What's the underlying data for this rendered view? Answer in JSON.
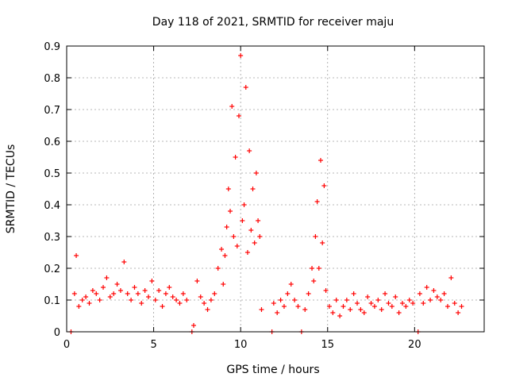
{
  "chart_data": {
    "type": "scatter",
    "title": "Day 118 of 2021, SRMTID for receiver maju",
    "xlabel": "GPS time / hours",
    "ylabel": "SRMTID / TECUs",
    "xlim": [
      0,
      24
    ],
    "ylim": [
      0,
      0.9
    ],
    "xticks": [
      0,
      5,
      10,
      15,
      20
    ],
    "xtick_labels": [
      "0",
      "5",
      "10",
      "15",
      "20"
    ],
    "yticks": [
      0,
      0.1,
      0.2,
      0.3,
      0.4,
      0.5,
      0.6,
      0.7,
      0.8,
      0.9
    ],
    "ytick_labels": [
      "0",
      "0.1",
      "0.2",
      "0.3",
      "0.4",
      "0.5",
      "0.6",
      "0.7",
      "0.8",
      "0.9"
    ],
    "grid": true,
    "marker": "+",
    "series": [
      {
        "name": "SRMTID",
        "color": "#ff0000",
        "x": [
          0.25,
          0.45,
          0.55,
          0.7,
          0.9,
          1.1,
          1.3,
          1.5,
          1.7,
          1.9,
          2.1,
          2.3,
          2.5,
          2.7,
          2.9,
          3.1,
          3.3,
          3.5,
          3.7,
          3.9,
          4.1,
          4.3,
          4.5,
          4.7,
          4.9,
          5.1,
          5.3,
          5.5,
          5.7,
          5.9,
          6.1,
          6.3,
          6.5,
          6.7,
          6.9,
          7.2,
          7.3,
          7.5,
          7.7,
          7.9,
          8.1,
          8.3,
          8.5,
          8.7,
          8.9,
          9.0,
          9.1,
          9.2,
          9.3,
          9.4,
          9.5,
          9.6,
          9.7,
          9.8,
          9.9,
          10.0,
          10.1,
          10.2,
          10.3,
          10.4,
          10.5,
          10.6,
          10.7,
          10.8,
          10.9,
          11.0,
          11.1,
          11.2,
          11.8,
          11.9,
          12.1,
          12.3,
          12.5,
          12.7,
          12.9,
          13.1,
          13.3,
          13.5,
          13.7,
          13.9,
          14.1,
          14.2,
          14.3,
          14.4,
          14.5,
          14.6,
          14.7,
          14.8,
          14.9,
          15.1,
          15.3,
          15.5,
          15.7,
          15.9,
          16.1,
          16.3,
          16.5,
          16.7,
          16.9,
          17.1,
          17.3,
          17.5,
          17.7,
          17.9,
          18.1,
          18.3,
          18.5,
          18.7,
          18.9,
          19.1,
          19.3,
          19.5,
          19.7,
          19.9,
          20.2,
          20.3,
          20.5,
          20.7,
          20.9,
          21.1,
          21.3,
          21.5,
          21.7,
          21.9,
          22.1,
          22.3,
          22.5,
          22.7
        ],
        "y": [
          0.0,
          0.12,
          0.24,
          0.08,
          0.1,
          0.11,
          0.09,
          0.13,
          0.12,
          0.1,
          0.14,
          0.17,
          0.11,
          0.12,
          0.15,
          0.13,
          0.22,
          0.12,
          0.1,
          0.14,
          0.12,
          0.09,
          0.13,
          0.11,
          0.16,
          0.1,
          0.13,
          0.08,
          0.12,
          0.14,
          0.11,
          0.1,
          0.09,
          0.12,
          0.1,
          0.0,
          0.02,
          0.16,
          0.11,
          0.09,
          0.07,
          0.1,
          0.12,
          0.2,
          0.26,
          0.15,
          0.24,
          0.33,
          0.45,
          0.38,
          0.71,
          0.3,
          0.55,
          0.27,
          0.68,
          0.87,
          0.35,
          0.4,
          0.77,
          0.25,
          0.57,
          0.32,
          0.45,
          0.28,
          0.5,
          0.35,
          0.3,
          0.07,
          0.0,
          0.09,
          0.06,
          0.1,
          0.08,
          0.12,
          0.15,
          0.1,
          0.08,
          0.0,
          0.07,
          0.12,
          0.2,
          0.16,
          0.3,
          0.41,
          0.2,
          0.54,
          0.28,
          0.46,
          0.13,
          0.08,
          0.06,
          0.1,
          0.05,
          0.08,
          0.1,
          0.07,
          0.12,
          0.09,
          0.07,
          0.06,
          0.11,
          0.09,
          0.08,
          0.1,
          0.07,
          0.12,
          0.09,
          0.08,
          0.11,
          0.06,
          0.09,
          0.08,
          0.1,
          0.09,
          0.0,
          0.12,
          0.09,
          0.14,
          0.1,
          0.13,
          0.11,
          0.1,
          0.12,
          0.08,
          0.17,
          0.09,
          0.06,
          0.08
        ]
      }
    ]
  }
}
